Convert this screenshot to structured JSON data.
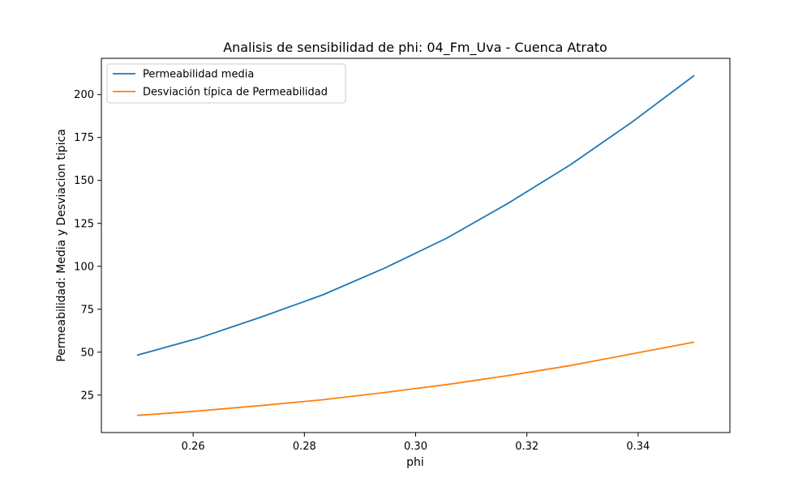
{
  "chart_data": {
    "type": "line",
    "title": "Analisis de sensibilidad de phi: 04_Fm_Uva - Cuenca Atrato",
    "xlabel": "phi",
    "ylabel": "Permeabilidad: Media y Desviacion tipica",
    "xlim": [
      0.2435,
      0.3565
    ],
    "ylim": [
      3.2,
      221.1
    ],
    "xticks": [
      0.26,
      0.28,
      0.3,
      0.32,
      0.34
    ],
    "xtick_labels": [
      "0.26",
      "0.28",
      "0.30",
      "0.32",
      "0.34"
    ],
    "yticks": [
      25,
      50,
      75,
      100,
      125,
      150,
      175,
      200
    ],
    "ytick_labels": [
      "25",
      "50",
      "75",
      "100",
      "125",
      "150",
      "175",
      "200"
    ],
    "grid": false,
    "legend": "upper left",
    "x": [
      0.25,
      0.2611,
      0.2722,
      0.2833,
      0.2944,
      0.3056,
      0.3167,
      0.3278,
      0.3389,
      0.35
    ],
    "series": [
      {
        "name": "Permeabilidad media",
        "color": "#1f77b4",
        "values": [
          48.3,
          58.3,
          70.4,
          83.4,
          98.9,
          116.4,
          136.8,
          159.1,
          184.0,
          210.9
        ]
      },
      {
        "name": "Desviación típica de Permeabilidad",
        "color": "#ff7f0e",
        "values": [
          13.2,
          15.8,
          18.9,
          22.3,
          26.5,
          31.1,
          36.4,
          42.2,
          49.0,
          55.8
        ]
      }
    ]
  }
}
